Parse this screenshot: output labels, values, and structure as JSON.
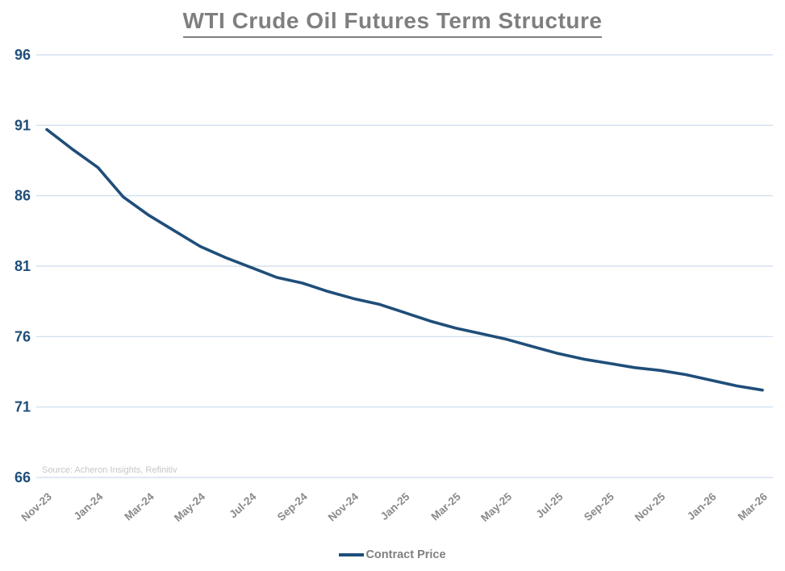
{
  "page": {
    "title": "WTI Crude Oil Futures Term Structure",
    "source_note": "Source: Acheron Insights, Refinitiv"
  },
  "legend": {
    "label": "Contract Price"
  },
  "colors": {
    "line": "#1f4e79",
    "gridline": "#c9dbed",
    "y_tick_label": "#1f4e79",
    "x_tick_label": "#8a8a8a",
    "title": "#7f7f7f",
    "source": "#c6c6c6",
    "background": "#ffffff"
  },
  "chart_data": {
    "type": "line",
    "title": "WTI Crude Oil Futures Term Structure",
    "xlabel": "",
    "ylabel": "",
    "ylim": [
      66,
      96
    ],
    "y_ticks": [
      96,
      91,
      86,
      81,
      76,
      71,
      66
    ],
    "grid": "horizontal",
    "legend_position": "bottom",
    "source": "Source: Acheron Insights, Refinitiv",
    "x": [
      "Nov-23",
      "Dec-23",
      "Jan-24",
      "Feb-24",
      "Mar-24",
      "Apr-24",
      "May-24",
      "Jun-24",
      "Jul-24",
      "Aug-24",
      "Sep-24",
      "Oct-24",
      "Nov-24",
      "Dec-24",
      "Jan-25",
      "Feb-25",
      "Mar-25",
      "Apr-25",
      "May-25",
      "Jun-25",
      "Jul-25",
      "Aug-25",
      "Sep-25",
      "Oct-25",
      "Nov-25",
      "Dec-25",
      "Jan-26",
      "Feb-26",
      "Mar-26"
    ],
    "x_tick_labels": [
      "Nov-23",
      "Jan-24",
      "Mar-24",
      "May-24",
      "Jul-24",
      "Sep-24",
      "Nov-24",
      "Jan-25",
      "Mar-25",
      "May-25",
      "Jul-25",
      "Sep-25",
      "Nov-25",
      "Jan-26",
      "Mar-26"
    ],
    "series": [
      {
        "name": "Contract Price",
        "color": "#1f4e79",
        "values": [
          90.7,
          89.3,
          88.0,
          85.9,
          84.6,
          83.5,
          82.4,
          81.6,
          80.9,
          80.2,
          79.8,
          79.2,
          78.7,
          78.3,
          77.7,
          77.1,
          76.6,
          76.2,
          75.8,
          75.3,
          74.8,
          74.4,
          74.1,
          73.8,
          73.6,
          73.3,
          72.9,
          72.5,
          72.2
        ]
      }
    ]
  }
}
